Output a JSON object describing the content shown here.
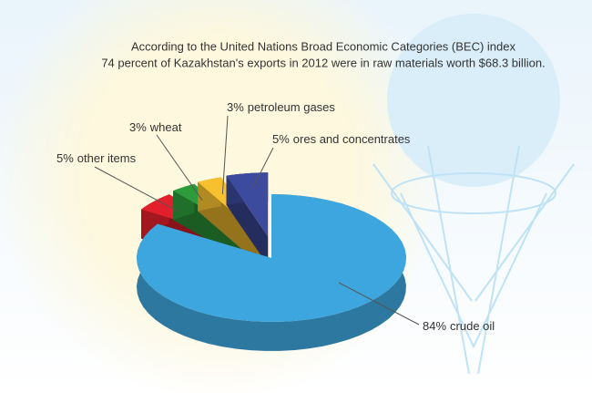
{
  "chart_data": {
    "type": "pie3d",
    "title": "According to the United Nations Broad Economic Categories (BEC) index",
    "subtitle": "74 percent of Kazakhstan's exports in 2012 were in raw materials worth $68.3 billion.",
    "categories": [
      "crude oil",
      "other items",
      "wheat",
      "petroleum gases",
      "ores and concentrates"
    ],
    "values": [
      84,
      5,
      3,
      3,
      5
    ],
    "value_labels": [
      "84%",
      "5%",
      "3%",
      "3%",
      "5%"
    ],
    "colors": [
      "#3ea6de",
      "#e2202b",
      "#2d9a3b",
      "#f6c02f",
      "#3c4b9d"
    ],
    "exploded": [
      false,
      true,
      true,
      true,
      true
    ]
  }
}
